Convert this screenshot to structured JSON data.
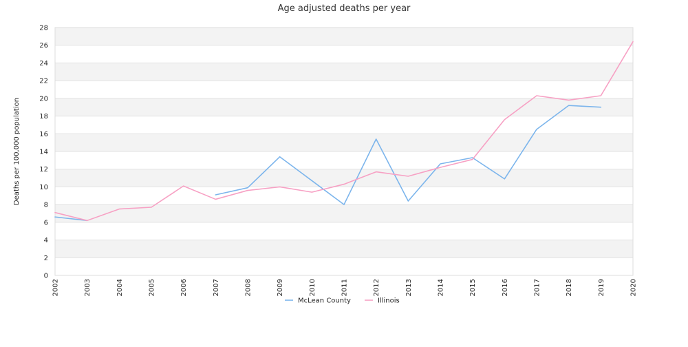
{
  "chart_data": {
    "type": "line",
    "title": "Age adjusted deaths per year",
    "xlabel": "",
    "ylabel": "Deaths per 100,000 population",
    "x": [
      "2002",
      "2003",
      "2004",
      "2005",
      "2006",
      "2007",
      "2008",
      "2009",
      "2010",
      "2011",
      "2012",
      "2013",
      "2014",
      "2015",
      "2016",
      "2017",
      "2018",
      "2019",
      "2020"
    ],
    "ylim": [
      0,
      28
    ],
    "yticks": [
      0,
      2,
      4,
      6,
      8,
      10,
      12,
      14,
      16,
      18,
      20,
      22,
      24,
      26,
      28
    ],
    "grid": true,
    "legend_position": "bottom",
    "series": [
      {
        "name": "McLean County",
        "color": "#7cb5ec",
        "values": [
          6.6,
          6.2,
          null,
          null,
          null,
          9.1,
          9.9,
          13.4,
          10.7,
          8.0,
          15.4,
          8.4,
          12.6,
          13.3,
          10.9,
          16.5,
          19.2,
          19.0,
          null
        ]
      },
      {
        "name": "Illinois",
        "color": "#f7a1c4",
        "values": [
          7.1,
          6.2,
          7.5,
          7.7,
          10.1,
          8.6,
          9.6,
          10.0,
          9.4,
          10.3,
          11.7,
          11.2,
          12.2,
          13.1,
          17.6,
          20.3,
          19.8,
          20.3,
          26.4
        ]
      }
    ]
  }
}
